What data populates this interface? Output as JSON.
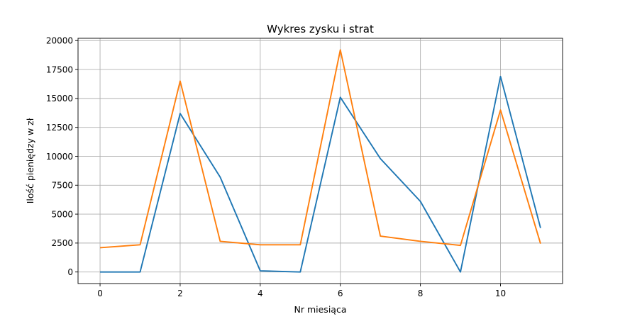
{
  "chart_data": {
    "type": "line",
    "title": "Wykres zysku i strat",
    "xlabel": "Nr miesiąca",
    "ylabel": "Ilość pieniędzy w zł",
    "xlim": [
      -0.55,
      11.55
    ],
    "ylim": [
      -1000,
      20200
    ],
    "xticks": [
      0,
      2,
      4,
      6,
      8,
      10
    ],
    "yticks": [
      0,
      2500,
      5000,
      7500,
      10000,
      12500,
      15000,
      17500,
      20000
    ],
    "xtick_labels": [
      "0",
      "2",
      "4",
      "6",
      "8",
      "10"
    ],
    "ytick_labels": [
      "0",
      "2500",
      "5000",
      "7500",
      "10000",
      "12500",
      "15000",
      "17500",
      "20000"
    ],
    "grid": true,
    "x": [
      0,
      1,
      2,
      3,
      4,
      5,
      6,
      7,
      8,
      9,
      10,
      11
    ],
    "series": [
      {
        "color": "#1f77b4",
        "values": [
          0,
          0,
          13700,
          8200,
          100,
          0,
          15100,
          9800,
          6100,
          0,
          16900,
          3800
        ]
      },
      {
        "color": "#ff7f0e",
        "values": [
          2100,
          2350,
          16500,
          2650,
          2350,
          2350,
          19200,
          3100,
          2650,
          2300,
          14000,
          2450
        ]
      }
    ]
  }
}
